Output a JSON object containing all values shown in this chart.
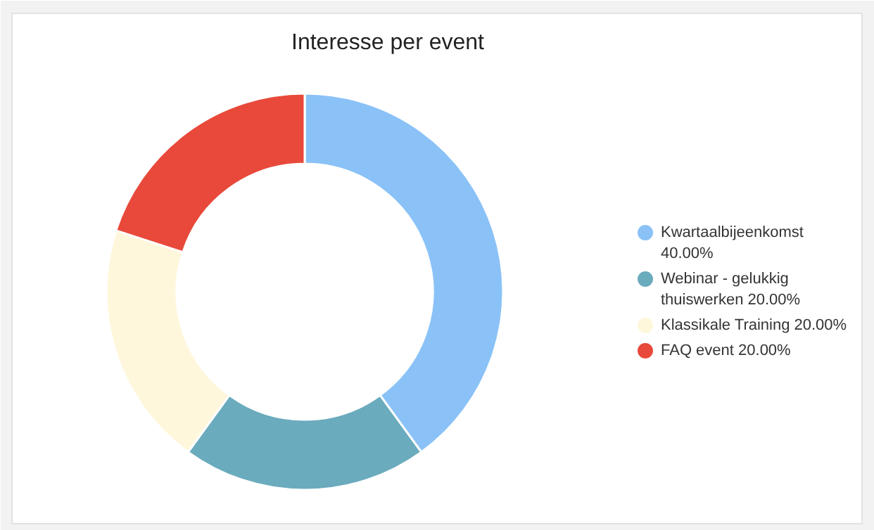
{
  "chart_data": {
    "type": "donut",
    "title": "Interesse per event",
    "categories": [
      "Kwartaalbijeenkomst 40.00%",
      "Webinar - gelukkig thuiswerken 20.00%",
      "Klassikale Training 20.00%",
      "FAQ event 20.00%"
    ],
    "values": [
      40,
      20,
      20,
      20
    ],
    "colors": [
      "#8ac2f7",
      "#6aabbd",
      "#fff7dc",
      "#e8493a"
    ],
    "legend": "right"
  }
}
